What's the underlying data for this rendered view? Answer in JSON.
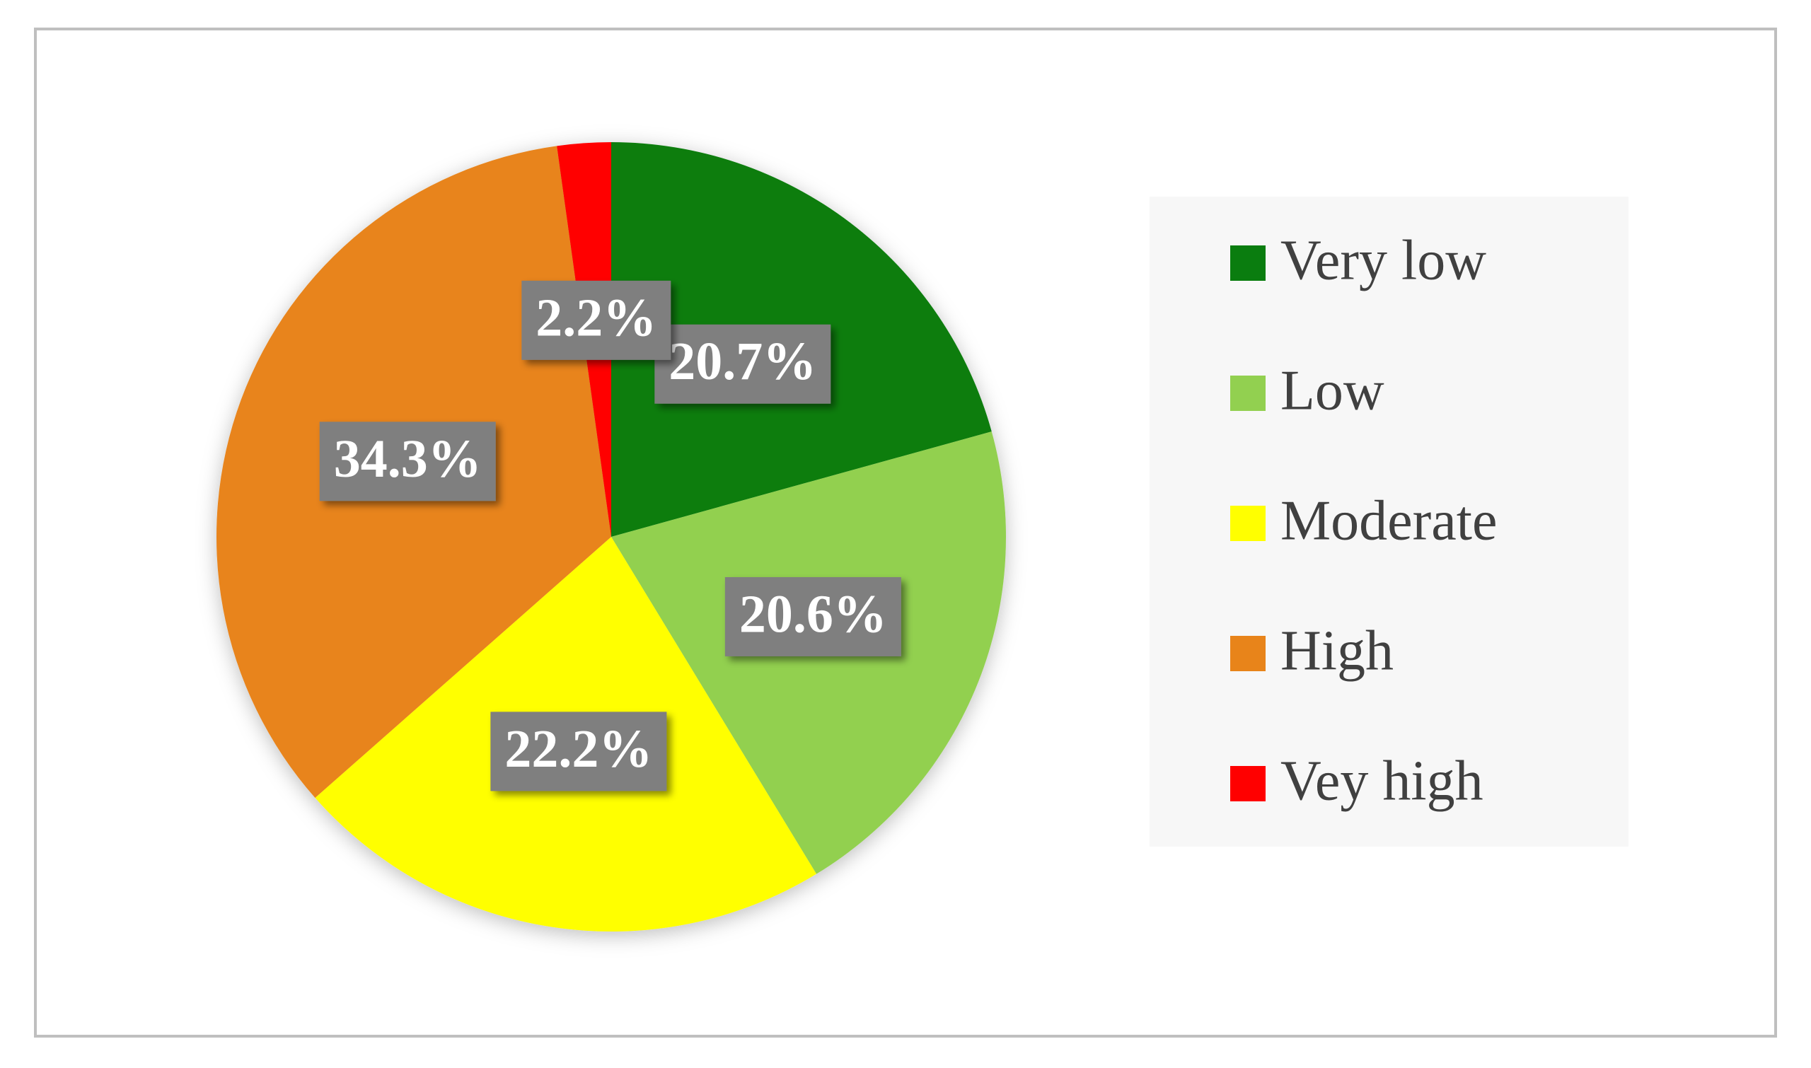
{
  "chart_data": {
    "type": "pie",
    "categories": [
      "Very low",
      "Low",
      "Moderate",
      "High",
      "Vey high"
    ],
    "values": [
      20.7,
      20.6,
      22.2,
      34.3,
      2.2
    ],
    "value_labels": [
      "20.7%",
      "20.6%",
      "22.2%",
      "34.3%",
      "2.2%"
    ],
    "colors": [
      "#0a7d0f",
      "#92d050",
      "#ffff00",
      "#e8841a",
      "#ff0000"
    ],
    "legend": "right"
  }
}
